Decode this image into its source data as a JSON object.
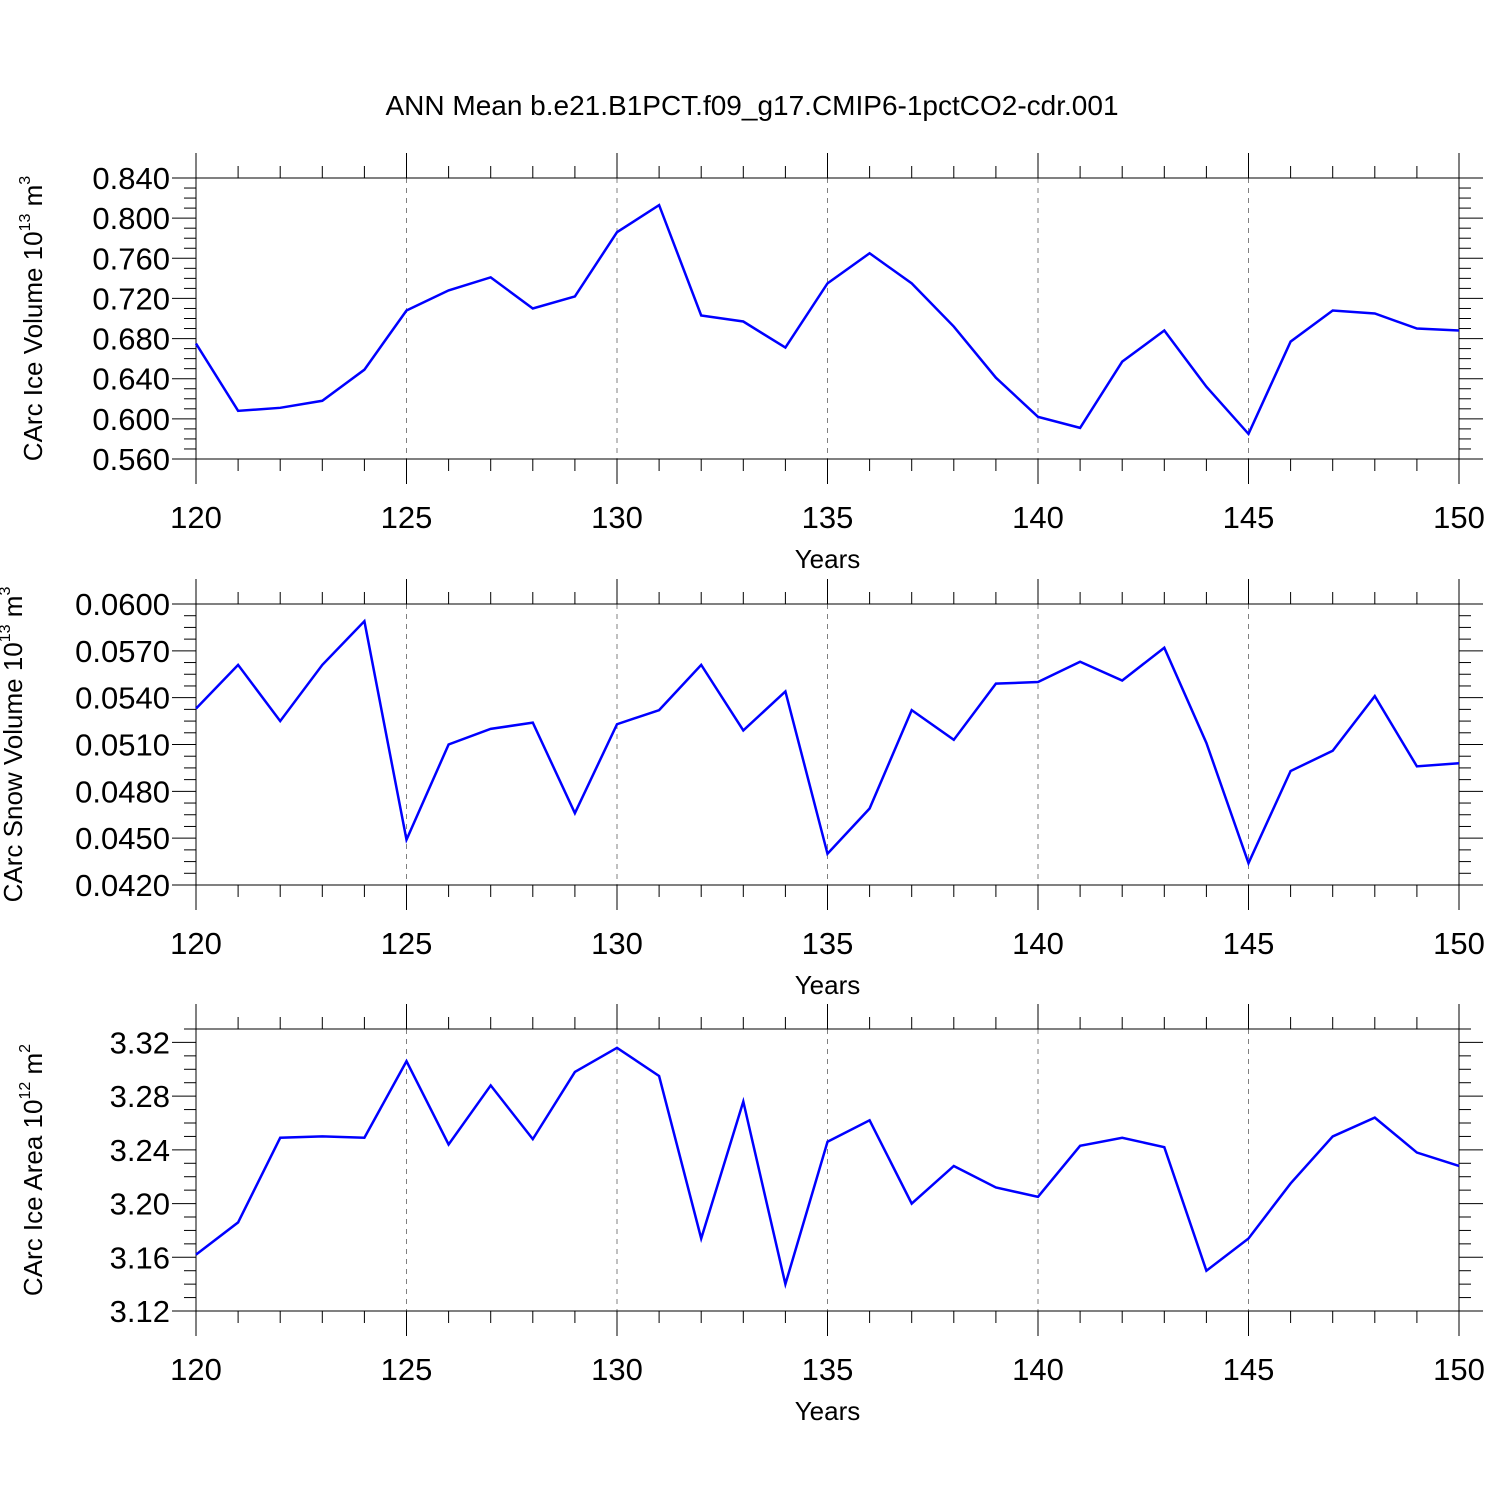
{
  "title": "ANN Mean b.e21.B1PCT.f09_g17.CMIP6-1pctCO2-cdr.001",
  "colors": {
    "line": "#0000ff",
    "grid": "#808080",
    "axis": "#000000"
  },
  "chart_data": [
    {
      "type": "line",
      "ylabel": "CArc Ice Volume 10",
      "ylabel_exp": "13",
      "ylabel_unit": "m",
      "ylabel_unit_exp": "3",
      "xlabel": "Years",
      "xlim": [
        120,
        150
      ],
      "ylim": [
        0.56,
        0.84
      ],
      "x_ticks": [
        "120",
        "125",
        "130",
        "135",
        "140",
        "145",
        "150"
      ],
      "y_ticks": [
        "0.840",
        "0.800",
        "0.760",
        "0.720",
        "0.680",
        "0.640",
        "0.600",
        "0.560"
      ],
      "grid": "dashed vertical at major x ticks",
      "x": [
        120,
        121,
        122,
        123,
        124,
        125,
        126,
        127,
        128,
        129,
        130,
        131,
        132,
        133,
        134,
        135,
        136,
        137,
        138,
        139,
        140,
        141,
        142,
        143,
        144,
        145,
        146,
        147,
        148,
        149,
        150
      ],
      "series": [
        {
          "values": [
            0.675,
            0.608,
            0.611,
            0.618,
            0.649,
            0.708,
            0.728,
            0.741,
            0.71,
            0.722,
            0.786,
            0.813,
            0.703,
            0.697,
            0.671,
            0.735,
            0.765,
            0.735,
            0.692,
            0.641,
            0.602,
            0.591,
            0.657,
            0.688,
            0.632,
            0.585,
            0.677,
            0.708,
            0.705,
            0.69,
            0.688
          ]
        }
      ]
    },
    {
      "type": "line",
      "ylabel": "CArc Snow Volume 10",
      "ylabel_exp": "13",
      "ylabel_unit": "m",
      "ylabel_unit_exp": "3",
      "xlabel": "Years",
      "xlim": [
        120,
        150
      ],
      "ylim": [
        0.042,
        0.06
      ],
      "x_ticks": [
        "120",
        "125",
        "130",
        "135",
        "140",
        "145",
        "150"
      ],
      "y_ticks": [
        "0.0600",
        "0.0570",
        "0.0540",
        "0.0510",
        "0.0480",
        "0.0450",
        "0.0420"
      ],
      "grid": "dashed vertical at major x ticks",
      "x": [
        120,
        121,
        122,
        123,
        124,
        125,
        126,
        127,
        128,
        129,
        130,
        131,
        132,
        133,
        134,
        135,
        136,
        137,
        138,
        139,
        140,
        141,
        142,
        143,
        144,
        145,
        146,
        147,
        148,
        149,
        150
      ],
      "series": [
        {
          "values": [
            0.0533,
            0.0561,
            0.0525,
            0.0561,
            0.0589,
            0.0449,
            0.051,
            0.052,
            0.0524,
            0.0466,
            0.0523,
            0.0532,
            0.0561,
            0.0519,
            0.0544,
            0.044,
            0.0469,
            0.0532,
            0.0513,
            0.0549,
            0.055,
            0.0563,
            0.0551,
            0.0572,
            0.0511,
            0.0434,
            0.0493,
            0.0506,
            0.0541,
            0.0496,
            0.0498
          ]
        }
      ]
    },
    {
      "type": "line",
      "ylabel": "CArc Ice Area 10",
      "ylabel_exp": "12",
      "ylabel_unit": "m",
      "ylabel_unit_exp": "2",
      "xlabel": "Years",
      "xlim": [
        120,
        150
      ],
      "ylim": [
        3.12,
        3.33
      ],
      "x_ticks": [
        "120",
        "125",
        "130",
        "135",
        "140",
        "145",
        "150"
      ],
      "y_ticks": [
        "3.32",
        "3.28",
        "3.24",
        "3.20",
        "3.16",
        "3.12"
      ],
      "grid": "dashed vertical at major x ticks",
      "x": [
        120,
        121,
        122,
        123,
        124,
        125,
        126,
        127,
        128,
        129,
        130,
        131,
        132,
        133,
        134,
        135,
        136,
        137,
        138,
        139,
        140,
        141,
        142,
        143,
        144,
        145,
        146,
        147,
        148,
        149,
        150
      ],
      "series": [
        {
          "values": [
            3.162,
            3.186,
            3.249,
            3.25,
            3.249,
            3.306,
            3.244,
            3.288,
            3.248,
            3.298,
            3.316,
            3.295,
            3.174,
            3.276,
            3.14,
            3.246,
            3.262,
            3.2,
            3.228,
            3.212,
            3.205,
            3.243,
            3.249,
            3.242,
            3.15,
            3.174,
            3.215,
            3.25,
            3.264,
            3.238,
            3.228
          ]
        }
      ]
    }
  ]
}
